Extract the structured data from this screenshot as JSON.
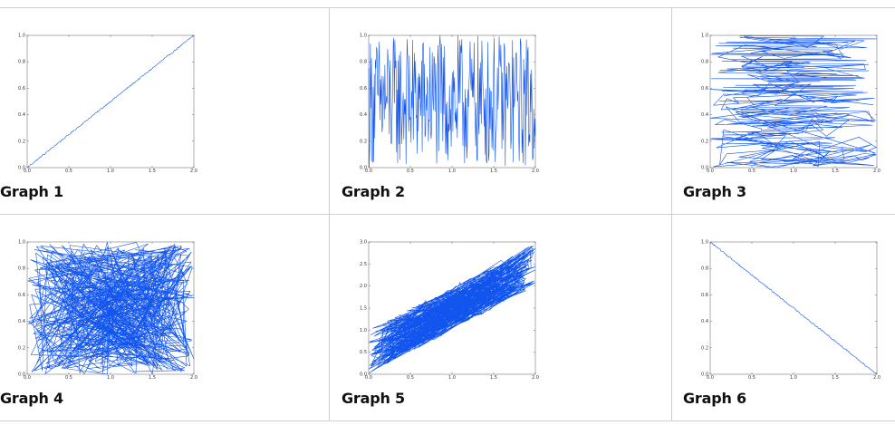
{
  "colors": {
    "line": "#1155ee",
    "axis": "#999999",
    "border": "#cfcfcf"
  },
  "chart_data": [
    {
      "caption": "Graph 1",
      "type": "line",
      "pattern": "increasing-noisy",
      "xlim": [
        0,
        2
      ],
      "ylim": [
        0,
        1
      ],
      "xticks": [
        "0.0",
        "0.5",
        "1.0",
        "1.5",
        "2.0"
      ],
      "yticks": [
        "0.0",
        "0.2",
        "0.4",
        "0.6",
        "0.8",
        "1.0"
      ],
      "points_x_range": [
        0,
        2
      ],
      "points_y_range": [
        0,
        1
      ],
      "n_points": 200
    },
    {
      "caption": "Graph 2",
      "type": "line",
      "pattern": "random-in-x-order",
      "xlim": [
        0,
        2
      ],
      "ylim": [
        0,
        1
      ],
      "xticks": [
        "0.0",
        "0.5",
        "1.0",
        "1.5",
        "2.0"
      ],
      "yticks": [
        "0.0",
        "0.2",
        "0.4",
        "0.6",
        "0.8",
        "1.0"
      ],
      "points_x_range": [
        0,
        2
      ],
      "points_y_range": [
        0,
        1
      ],
      "n_points": 300
    },
    {
      "caption": "Graph 3",
      "type": "line",
      "pattern": "random-in-y-order",
      "xlim": [
        0,
        2
      ],
      "ylim": [
        0,
        1
      ],
      "xticks": [
        "0.0",
        "0.5",
        "1.0",
        "1.5",
        "2.0"
      ],
      "yticks": [
        "0.0",
        "0.2",
        "0.4",
        "0.6",
        "0.8",
        "1.0"
      ],
      "points_x_range": [
        0,
        2
      ],
      "points_y_range": [
        0,
        1
      ],
      "n_points": 300
    },
    {
      "caption": "Graph 4",
      "type": "line",
      "pattern": "fully-random",
      "xlim": [
        0,
        2
      ],
      "ylim": [
        0,
        1
      ],
      "xticks": [
        "0.0",
        "0.5",
        "1.0",
        "1.5",
        "2.0"
      ],
      "yticks": [
        "0.0",
        "0.2",
        "0.4",
        "0.6",
        "0.8",
        "1.0"
      ],
      "points_x_range": [
        0,
        2
      ],
      "points_y_range": [
        0,
        1
      ],
      "n_points": 500
    },
    {
      "caption": "Graph 5",
      "type": "line",
      "pattern": "random-band-y-equals-x-plus-uniform",
      "xlim": [
        0,
        2
      ],
      "ylim": [
        0,
        3
      ],
      "xticks": [
        "0.0",
        "0.5",
        "1.0",
        "1.5",
        "2.0"
      ],
      "yticks": [
        "0.0",
        "0.5",
        "1.0",
        "1.5",
        "2.0",
        "2.5",
        "3.0"
      ],
      "points_x_range": [
        0,
        2
      ],
      "band_offset_range": [
        0,
        1
      ],
      "n_points": 500
    },
    {
      "caption": "Graph 6",
      "type": "line",
      "pattern": "decreasing-noisy",
      "xlim": [
        0,
        2
      ],
      "ylim": [
        0,
        1
      ],
      "xticks": [
        "0.0",
        "0.5",
        "1.0",
        "1.5",
        "2.0"
      ],
      "yticks": [
        "0.0",
        "0.2",
        "0.4",
        "0.6",
        "0.8",
        "1.0"
      ],
      "points_x_range": [
        0,
        2
      ],
      "points_y_range": [
        1,
        0
      ],
      "n_points": 200
    }
  ]
}
